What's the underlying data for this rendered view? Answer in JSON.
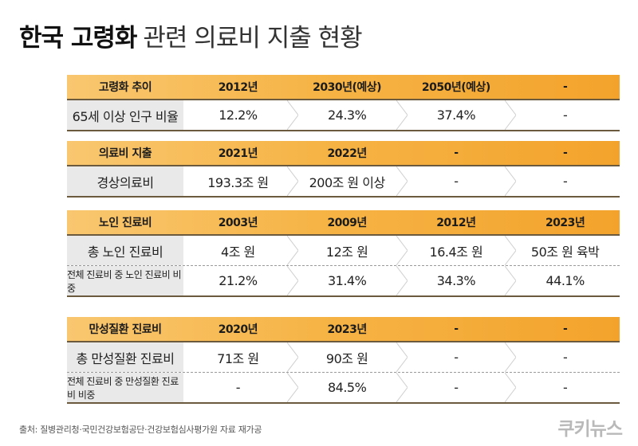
{
  "title": {
    "bold": "한국 고령화",
    "light": "관련 의료비 지출 현황"
  },
  "sections": [
    {
      "header": [
        "고령화 추이",
        "2012년",
        "2030년(예상)",
        "2050년(예상)",
        "-"
      ],
      "rows": [
        {
          "label": "65세 이상 인구 비율",
          "values": [
            "12.2%",
            "24.3%",
            "37.4%",
            "-"
          ]
        }
      ]
    },
    {
      "header": [
        "의료비 지출",
        "2021년",
        "2022년",
        "-",
        "-"
      ],
      "rows": [
        {
          "label": "경상의료비",
          "values": [
            "193.3조 원",
            "200조 원 이상",
            "-",
            "-"
          ]
        }
      ]
    },
    {
      "header": [
        "노인 진료비",
        "2003년",
        "2009년",
        "2012년",
        "2023년"
      ],
      "rows": [
        {
          "label": "총 노인 진료비",
          "values": [
            "4조 원",
            "12조 원",
            "16.4조 원",
            "50조 원 육박"
          ]
        },
        {
          "label": "전체 진료비 중 노인 진료비 비중",
          "values": [
            "21.2%",
            "31.4%",
            "34.3%",
            "44.1%"
          ]
        }
      ]
    },
    {
      "header": [
        "만성질환 진료비",
        "2020년",
        "2023년",
        "-",
        "-"
      ],
      "rows": [
        {
          "label": "총 만성질환 진료비",
          "values": [
            "71조 원",
            "90조 원",
            "-",
            "-"
          ]
        },
        {
          "label": "전체 진료비 중 만성질환 진료비 비중",
          "values": [
            "-",
            "84.5%",
            "-",
            "-"
          ]
        }
      ]
    }
  ],
  "source": "출처: 질병관리청·국민건강보험공단·건강보험심사평가원 자료 재가공",
  "logo": "쿠키뉴스"
}
